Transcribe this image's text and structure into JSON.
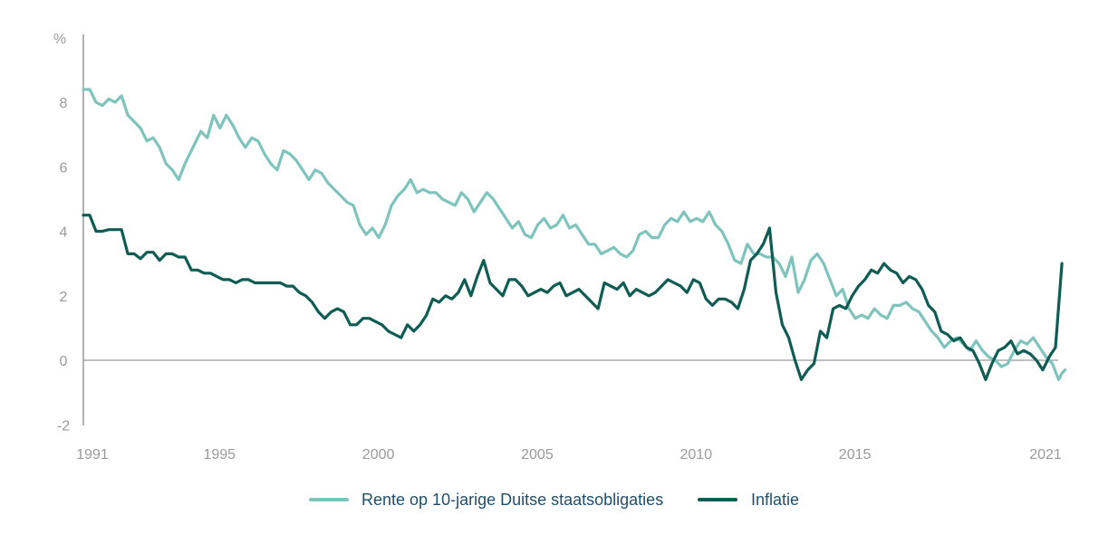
{
  "chart_data": {
    "type": "line",
    "y_unit_label": "%",
    "ylim": [
      -2,
      9
    ],
    "y_ticks": [
      -2,
      0,
      2,
      4,
      6,
      8
    ],
    "x_ticks": [
      1991,
      1995,
      2000,
      2005,
      2010,
      2015,
      2021
    ],
    "xlim": [
      1991,
      2021.8
    ],
    "grid": false,
    "legend_position": "bottom",
    "series": [
      {
        "name": "Rente op 10-jarige Duitse staatsobligaties",
        "color": "#7ec4bd",
        "points": [
          [
            1991.0,
            8.4
          ],
          [
            1991.2,
            8.4
          ],
          [
            1991.4,
            8.0
          ],
          [
            1991.6,
            7.9
          ],
          [
            1991.8,
            8.1
          ],
          [
            1992.0,
            8.0
          ],
          [
            1992.2,
            8.2
          ],
          [
            1992.4,
            7.6
          ],
          [
            1992.6,
            7.4
          ],
          [
            1992.8,
            7.2
          ],
          [
            1993.0,
            6.8
          ],
          [
            1993.2,
            6.9
          ],
          [
            1993.4,
            6.6
          ],
          [
            1993.6,
            6.1
          ],
          [
            1993.8,
            5.9
          ],
          [
            1994.0,
            5.6
          ],
          [
            1994.2,
            6.1
          ],
          [
            1994.5,
            6.7
          ],
          [
            1994.7,
            7.1
          ],
          [
            1994.9,
            6.9
          ],
          [
            1995.1,
            7.6
          ],
          [
            1995.3,
            7.2
          ],
          [
            1995.5,
            7.6
          ],
          [
            1995.7,
            7.3
          ],
          [
            1995.9,
            6.9
          ],
          [
            1996.1,
            6.6
          ],
          [
            1996.3,
            6.9
          ],
          [
            1996.5,
            6.8
          ],
          [
            1996.7,
            6.4
          ],
          [
            1996.9,
            6.1
          ],
          [
            1997.1,
            5.9
          ],
          [
            1997.3,
            6.5
          ],
          [
            1997.5,
            6.4
          ],
          [
            1997.7,
            6.2
          ],
          [
            1997.9,
            5.9
          ],
          [
            1998.1,
            5.6
          ],
          [
            1998.3,
            5.9
          ],
          [
            1998.5,
            5.8
          ],
          [
            1998.7,
            5.5
          ],
          [
            1998.9,
            5.3
          ],
          [
            1999.1,
            5.1
          ],
          [
            1999.3,
            4.9
          ],
          [
            1999.5,
            4.8
          ],
          [
            1999.7,
            4.2
          ],
          [
            1999.9,
            3.9
          ],
          [
            2000.1,
            4.1
          ],
          [
            2000.3,
            3.8
          ],
          [
            2000.5,
            4.2
          ],
          [
            2000.7,
            4.8
          ],
          [
            2000.9,
            5.1
          ],
          [
            2001.1,
            5.3
          ],
          [
            2001.3,
            5.6
          ],
          [
            2001.5,
            5.2
          ],
          [
            2001.7,
            5.3
          ],
          [
            2001.9,
            5.2
          ],
          [
            2002.1,
            5.2
          ],
          [
            2002.3,
            5.0
          ],
          [
            2002.5,
            4.9
          ],
          [
            2002.7,
            4.8
          ],
          [
            2002.9,
            5.2
          ],
          [
            2003.1,
            5.0
          ],
          [
            2003.3,
            4.6
          ],
          [
            2003.5,
            4.9
          ],
          [
            2003.7,
            5.2
          ],
          [
            2003.9,
            5.0
          ],
          [
            2004.1,
            4.7
          ],
          [
            2004.3,
            4.4
          ],
          [
            2004.5,
            4.1
          ],
          [
            2004.7,
            4.3
          ],
          [
            2004.9,
            3.9
          ],
          [
            2005.1,
            3.8
          ],
          [
            2005.3,
            4.2
          ],
          [
            2005.5,
            4.4
          ],
          [
            2005.7,
            4.1
          ],
          [
            2005.9,
            4.2
          ],
          [
            2006.1,
            4.5
          ],
          [
            2006.3,
            4.1
          ],
          [
            2006.5,
            4.2
          ],
          [
            2006.7,
            3.9
          ],
          [
            2006.9,
            3.6
          ],
          [
            2007.1,
            3.6
          ],
          [
            2007.3,
            3.3
          ],
          [
            2007.5,
            3.4
          ],
          [
            2007.7,
            3.5
          ],
          [
            2007.9,
            3.3
          ],
          [
            2008.1,
            3.2
          ],
          [
            2008.3,
            3.4
          ],
          [
            2008.5,
            3.9
          ],
          [
            2008.7,
            4.0
          ],
          [
            2008.9,
            3.8
          ],
          [
            2009.1,
            3.8
          ],
          [
            2009.3,
            4.2
          ],
          [
            2009.5,
            4.4
          ],
          [
            2009.7,
            4.3
          ],
          [
            2009.9,
            4.6
          ],
          [
            2010.1,
            4.3
          ],
          [
            2010.3,
            4.4
          ],
          [
            2010.5,
            4.3
          ],
          [
            2010.7,
            4.6
          ],
          [
            2010.9,
            4.2
          ],
          [
            2011.1,
            4.0
          ],
          [
            2011.3,
            3.6
          ],
          [
            2011.5,
            3.1
          ],
          [
            2011.7,
            3.0
          ],
          [
            2011.9,
            3.6
          ],
          [
            2012.1,
            3.3
          ],
          [
            2012.3,
            3.3
          ],
          [
            2012.5,
            3.2
          ],
          [
            2012.7,
            3.2
          ],
          [
            2012.9,
            3.0
          ],
          [
            2013.1,
            2.6
          ],
          [
            2013.3,
            3.2
          ],
          [
            2013.5,
            2.1
          ],
          [
            2013.7,
            2.5
          ],
          [
            2013.9,
            3.1
          ],
          [
            2014.1,
            3.3
          ],
          [
            2014.3,
            3.0
          ],
          [
            2014.5,
            2.5
          ],
          [
            2014.7,
            2.0
          ],
          [
            2014.9,
            2.2
          ],
          [
            2015.1,
            1.6
          ],
          [
            2015.3,
            1.3
          ],
          [
            2015.5,
            1.4
          ],
          [
            2015.7,
            1.3
          ],
          [
            2015.9,
            1.6
          ],
          [
            2016.1,
            1.4
          ],
          [
            2016.3,
            1.3
          ],
          [
            2016.5,
            1.7
          ],
          [
            2016.7,
            1.7
          ],
          [
            2016.9,
            1.8
          ],
          [
            2017.1,
            1.6
          ],
          [
            2017.3,
            1.5
          ],
          [
            2017.5,
            1.2
          ],
          [
            2017.7,
            0.9
          ],
          [
            2017.9,
            0.7
          ],
          [
            2018.1,
            0.4
          ],
          [
            2018.3,
            0.6
          ],
          [
            2018.5,
            0.7
          ],
          [
            2018.7,
            0.5
          ],
          [
            2018.9,
            0.3
          ],
          [
            2019.1,
            0.6
          ],
          [
            2019.3,
            0.3
          ],
          [
            2019.5,
            0.1
          ],
          [
            2019.7,
            0.0
          ],
          [
            2019.9,
            -0.2
          ],
          [
            2020.1,
            -0.1
          ],
          [
            2020.3,
            0.3
          ],
          [
            2020.5,
            0.6
          ],
          [
            2020.7,
            0.5
          ],
          [
            2020.9,
            0.7
          ],
          [
            2021.1,
            0.4
          ],
          [
            2021.3,
            0.1
          ],
          [
            2021.5,
            -0.1
          ],
          [
            2021.7,
            -0.6
          ],
          [
            2021.8,
            -0.4
          ],
          [
            2021.9,
            -0.3
          ]
        ]
      },
      {
        "name": "Inflatie",
        "color": "#0e5c53",
        "points": [
          [
            1991.0,
            4.5
          ],
          [
            1991.2,
            4.5
          ],
          [
            1991.4,
            4.0
          ],
          [
            1991.6,
            4.0
          ],
          [
            1991.8,
            4.05
          ],
          [
            1992.0,
            4.05
          ],
          [
            1992.2,
            4.05
          ],
          [
            1992.4,
            3.3
          ],
          [
            1992.6,
            3.3
          ],
          [
            1992.8,
            3.15
          ],
          [
            1993.0,
            3.35
          ],
          [
            1993.2,
            3.35
          ],
          [
            1993.4,
            3.1
          ],
          [
            1993.6,
            3.3
          ],
          [
            1993.8,
            3.3
          ],
          [
            1994.0,
            3.2
          ],
          [
            1994.2,
            3.2
          ],
          [
            1994.4,
            2.8
          ],
          [
            1994.6,
            2.8
          ],
          [
            1994.8,
            2.7
          ],
          [
            1995.0,
            2.7
          ],
          [
            1995.2,
            2.6
          ],
          [
            1995.4,
            2.5
          ],
          [
            1995.6,
            2.5
          ],
          [
            1995.8,
            2.4
          ],
          [
            1996.0,
            2.5
          ],
          [
            1996.2,
            2.5
          ],
          [
            1996.4,
            2.4
          ],
          [
            1996.6,
            2.4
          ],
          [
            1996.8,
            2.4
          ],
          [
            1997.0,
            2.4
          ],
          [
            1997.2,
            2.4
          ],
          [
            1997.4,
            2.3
          ],
          [
            1997.6,
            2.3
          ],
          [
            1997.8,
            2.1
          ],
          [
            1998.0,
            2.0
          ],
          [
            1998.2,
            1.8
          ],
          [
            1998.4,
            1.5
          ],
          [
            1998.6,
            1.3
          ],
          [
            1998.8,
            1.5
          ],
          [
            1999.0,
            1.6
          ],
          [
            1999.2,
            1.5
          ],
          [
            1999.4,
            1.1
          ],
          [
            1999.6,
            1.1
          ],
          [
            1999.8,
            1.3
          ],
          [
            2000.0,
            1.3
          ],
          [
            2000.2,
            1.2
          ],
          [
            2000.4,
            1.1
          ],
          [
            2000.6,
            0.9
          ],
          [
            2000.8,
            0.8
          ],
          [
            2001.0,
            0.7
          ],
          [
            2001.2,
            1.1
          ],
          [
            2001.4,
            0.9
          ],
          [
            2001.6,
            1.1
          ],
          [
            2001.8,
            1.4
          ],
          [
            2002.0,
            1.9
          ],
          [
            2002.2,
            1.8
          ],
          [
            2002.4,
            2.0
          ],
          [
            2002.6,
            1.9
          ],
          [
            2002.8,
            2.1
          ],
          [
            2003.0,
            2.5
          ],
          [
            2003.2,
            2.0
          ],
          [
            2003.4,
            2.6
          ],
          [
            2003.6,
            3.1
          ],
          [
            2003.8,
            2.4
          ],
          [
            2004.0,
            2.2
          ],
          [
            2004.2,
            2.0
          ],
          [
            2004.4,
            2.5
          ],
          [
            2004.6,
            2.5
          ],
          [
            2004.8,
            2.3
          ],
          [
            2005.0,
            2.0
          ],
          [
            2005.2,
            2.1
          ],
          [
            2005.4,
            2.2
          ],
          [
            2005.6,
            2.1
          ],
          [
            2005.8,
            2.3
          ],
          [
            2006.0,
            2.4
          ],
          [
            2006.2,
            2.0
          ],
          [
            2006.4,
            2.1
          ],
          [
            2006.6,
            2.2
          ],
          [
            2006.8,
            2.0
          ],
          [
            2007.0,
            1.8
          ],
          [
            2007.2,
            1.6
          ],
          [
            2007.4,
            2.4
          ],
          [
            2007.6,
            2.3
          ],
          [
            2007.8,
            2.2
          ],
          [
            2008.0,
            2.4
          ],
          [
            2008.2,
            2.0
          ],
          [
            2008.4,
            2.2
          ],
          [
            2008.6,
            2.1
          ],
          [
            2008.8,
            2.0
          ],
          [
            2009.0,
            2.1
          ],
          [
            2009.2,
            2.3
          ],
          [
            2009.4,
            2.5
          ],
          [
            2009.6,
            2.4
          ],
          [
            2009.8,
            2.3
          ],
          [
            2010.0,
            2.1
          ],
          [
            2010.2,
            2.5
          ],
          [
            2010.4,
            2.4
          ],
          [
            2010.6,
            1.9
          ],
          [
            2010.8,
            1.7
          ],
          [
            2011.0,
            1.9
          ],
          [
            2011.2,
            1.9
          ],
          [
            2011.4,
            1.8
          ],
          [
            2011.6,
            1.6
          ],
          [
            2011.8,
            2.2
          ],
          [
            2012.0,
            3.1
          ],
          [
            2012.2,
            3.3
          ],
          [
            2012.4,
            3.6
          ],
          [
            2012.6,
            4.1
          ],
          [
            2012.8,
            2.1
          ],
          [
            2013.0,
            1.1
          ],
          [
            2013.2,
            0.7
          ],
          [
            2013.4,
            0.0
          ],
          [
            2013.6,
            -0.6
          ],
          [
            2013.8,
            -0.3
          ],
          [
            2014.0,
            -0.1
          ],
          [
            2014.2,
            0.9
          ],
          [
            2014.4,
            0.7
          ],
          [
            2014.6,
            1.6
          ],
          [
            2014.8,
            1.7
          ],
          [
            2015.0,
            1.6
          ],
          [
            2015.2,
            2.0
          ],
          [
            2015.4,
            2.3
          ],
          [
            2015.6,
            2.5
          ],
          [
            2015.8,
            2.8
          ],
          [
            2016.0,
            2.7
          ],
          [
            2016.2,
            3.0
          ],
          [
            2016.4,
            2.8
          ],
          [
            2016.6,
            2.7
          ],
          [
            2016.8,
            2.4
          ],
          [
            2017.0,
            2.6
          ],
          [
            2017.2,
            2.5
          ],
          [
            2017.4,
            2.2
          ],
          [
            2017.6,
            1.7
          ],
          [
            2017.8,
            1.5
          ],
          [
            2018.0,
            0.9
          ],
          [
            2018.2,
            0.8
          ],
          [
            2018.4,
            0.6
          ],
          [
            2018.6,
            0.7
          ],
          [
            2018.8,
            0.4
          ],
          [
            2019.0,
            0.3
          ],
          [
            2019.2,
            -0.1
          ],
          [
            2019.4,
            -0.6
          ],
          [
            2019.6,
            -0.1
          ],
          [
            2019.8,
            0.3
          ],
          [
            2020.0,
            0.4
          ],
          [
            2020.2,
            0.6
          ],
          [
            2020.4,
            0.2
          ],
          [
            2020.6,
            0.3
          ],
          [
            2020.8,
            0.2
          ],
          [
            2021.0,
            0.0
          ],
          [
            2021.2,
            -0.3
          ],
          [
            2021.4,
            0.1
          ],
          [
            2021.6,
            0.4
          ],
          [
            2021.8,
            3.0
          ]
        ]
      }
    ],
    "legend": [
      {
        "label": "Rente op 10-jarige Duitse staatsobligaties",
        "color": "#7ec4bd"
      },
      {
        "label": "Inflatie",
        "color": "#0e5c53"
      }
    ]
  }
}
